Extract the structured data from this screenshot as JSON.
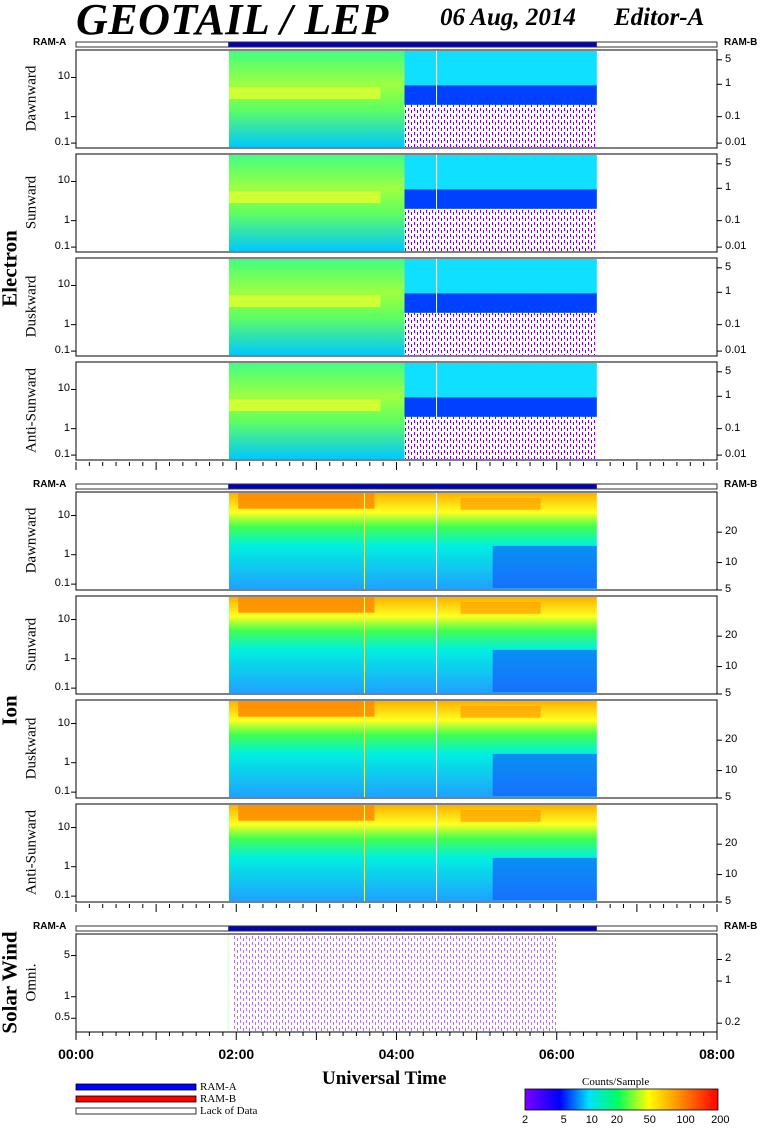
{
  "header": {
    "title": "GEOTAIL / LEP",
    "date": "06 Aug, 2014",
    "editor": "Editor-A"
  },
  "labels": {
    "ram_a": "RAM-A",
    "ram_b": "RAM-B",
    "electron": "Electron",
    "ion": "Ion",
    "solar_wind": "Solar Wind"
  },
  "chart_data": {
    "type": "heatmap",
    "xlabel": "Universal Time",
    "x_ticks": [
      "00:00",
      "02:00",
      "04:00",
      "06:00",
      "08:00"
    ],
    "data_coverage": [
      "01:54",
      "06:30"
    ],
    "groups": [
      {
        "name": "Electron",
        "panels": [
          {
            "name": "Dawnward",
            "left_ticks": [
              "10",
              "1",
              "0.1"
            ],
            "right_ticks": [
              "5",
              "1",
              "0.1",
              "0.01"
            ]
          },
          {
            "name": "Sunward",
            "left_ticks": [
              "10",
              "1",
              "0.1"
            ],
            "right_ticks": [
              "5",
              "1",
              "0.1",
              "0.01"
            ]
          },
          {
            "name": "Duskward",
            "left_ticks": [
              "10",
              "1",
              "0.1"
            ],
            "right_ticks": [
              "5",
              "1",
              "0.1",
              "0.01"
            ]
          },
          {
            "name": "Anti-Sunward",
            "left_ticks": [
              "10",
              "1",
              "0.1"
            ],
            "right_ticks": [
              "5",
              "1",
              "0.1",
              "0.01"
            ]
          }
        ]
      },
      {
        "name": "Ion",
        "panels": [
          {
            "name": "Dawnward",
            "left_ticks": [
              "10",
              "1",
              "0.1"
            ],
            "right_ticks": [
              "20",
              "10",
              "5"
            ]
          },
          {
            "name": "Sunward",
            "left_ticks": [
              "10",
              "1",
              "0.1"
            ],
            "right_ticks": [
              "20",
              "10",
              "5"
            ]
          },
          {
            "name": "Duskward",
            "left_ticks": [
              "10",
              "1",
              "0.1"
            ],
            "right_ticks": [
              "20",
              "10",
              "5"
            ]
          },
          {
            "name": "Anti-Sunward",
            "left_ticks": [
              "10",
              "1",
              "0.1"
            ],
            "right_ticks": [
              "20",
              "10",
              "5"
            ]
          }
        ]
      },
      {
        "name": "Solar Wind",
        "panels": [
          {
            "name": "Omni.",
            "left_ticks": [
              "5",
              "1",
              "0.5"
            ],
            "right_ticks": [
              "2",
              "1",
              "0.2"
            ]
          }
        ]
      }
    ],
    "legend": [
      "RAM-A",
      "RAM-B",
      "Lack of Data"
    ],
    "colorbar": {
      "title": "Counts/Sample",
      "ticks": [
        "2",
        "5",
        "10",
        "20",
        "50",
        "100",
        "200"
      ],
      "colors": [
        "#7a00ff",
        "#0000ff",
        "#00e0ff",
        "#00ff60",
        "#ffff00",
        "#ff8000",
        "#ff0000"
      ]
    }
  }
}
